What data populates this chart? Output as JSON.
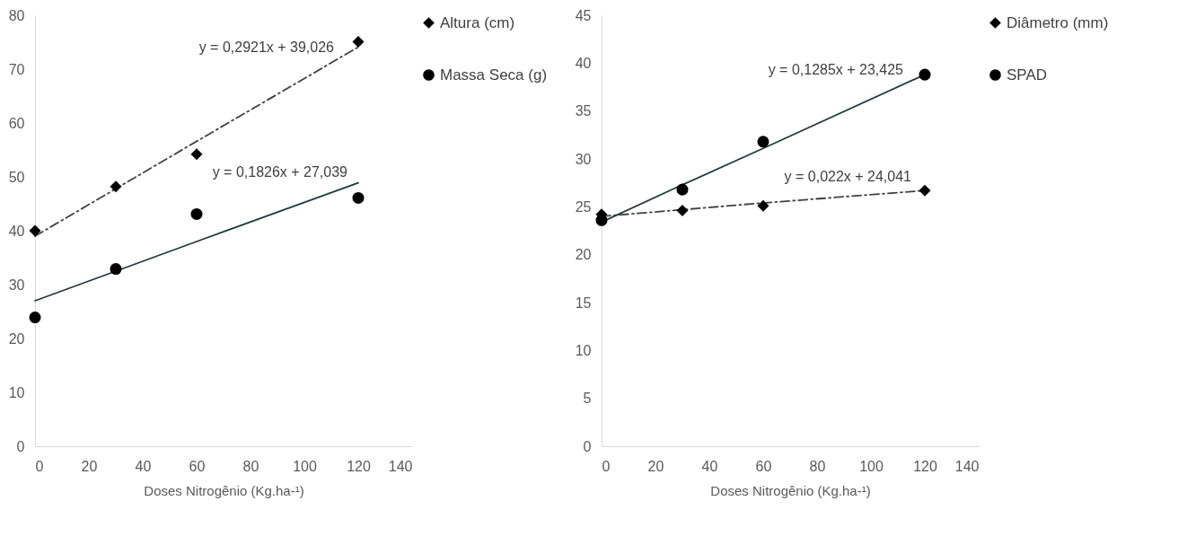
{
  "chart_data": [
    {
      "type": "scatter",
      "xlabel": "Doses  Nitrogênio (Kg.ha-¹)",
      "x": [
        0,
        30,
        60,
        120
      ],
      "xlim": [
        0,
        140
      ],
      "xticks": [
        0,
        20,
        40,
        60,
        80,
        100,
        120,
        140
      ],
      "ylim": [
        0,
        80
      ],
      "yticks": [
        0,
        10,
        20,
        30,
        40,
        50,
        60,
        70,
        80
      ],
      "grid": false,
      "legend": "right",
      "series": [
        {
          "name": "Altura (cm)",
          "marker": "diamond",
          "color": "#000000",
          "values": [
            40,
            48.2,
            54.2,
            75.1
          ]
        },
        {
          "name": "Massa Seca (g)",
          "marker": "circle",
          "color": "#000000",
          "values": [
            23.9,
            32.9,
            43.1,
            46.1
          ]
        },
        {
          "type": "line",
          "line_style": "dashed",
          "color": "#404040",
          "values": [
            39.0,
            47.8,
            56.6,
            74.1
          ]
        },
        {
          "type": "line",
          "line_style": "solid",
          "color": "#1f3a3f",
          "values": [
            27.0,
            32.5,
            38.0,
            48.9
          ]
        }
      ],
      "annotations": [
        {
          "text": "y = 0,2921x + 39,026",
          "x": 111,
          "y": 71.4
        },
        {
          "text": "y = 0,1826x + 27,039",
          "x": 116,
          "y": 48.2
        }
      ]
    },
    {
      "type": "scatter",
      "xlabel": "Doses  Nitrogênio (Kg.ha-¹)",
      "x": [
        0,
        30,
        60,
        120
      ],
      "xlim": [
        0,
        140
      ],
      "xticks": [
        0,
        20,
        40,
        60,
        80,
        100,
        120,
        140
      ],
      "ylim": [
        0,
        45
      ],
      "yticks": [
        0,
        5,
        10,
        15,
        20,
        25,
        30,
        35,
        40,
        45
      ],
      "grid": false,
      "legend": "right",
      "series": [
        {
          "name": "Diâmetro (mm)",
          "marker": "diamond",
          "color": "#000000",
          "values": [
            24.2,
            24.6,
            25.1,
            26.7
          ]
        },
        {
          "name": "SPAD",
          "marker": "circle",
          "color": "#000000",
          "values": [
            23.6,
            26.8,
            31.8,
            38.8
          ]
        },
        {
          "type": "line",
          "line_style": "dashed",
          "color": "#404040",
          "values": [
            24.0,
            24.7,
            25.4,
            26.7
          ]
        },
        {
          "type": "line",
          "line_style": "solid",
          "color": "#1f3a3f",
          "values": [
            23.4,
            27.3,
            31.1,
            38.8
          ]
        }
      ],
      "annotations": [
        {
          "text": "y = 0,1285x + 23,425",
          "x": 112,
          "y": 37.8
        },
        {
          "text": "y = 0,022x + 24,041",
          "x": 115,
          "y": 26.6
        }
      ]
    }
  ]
}
